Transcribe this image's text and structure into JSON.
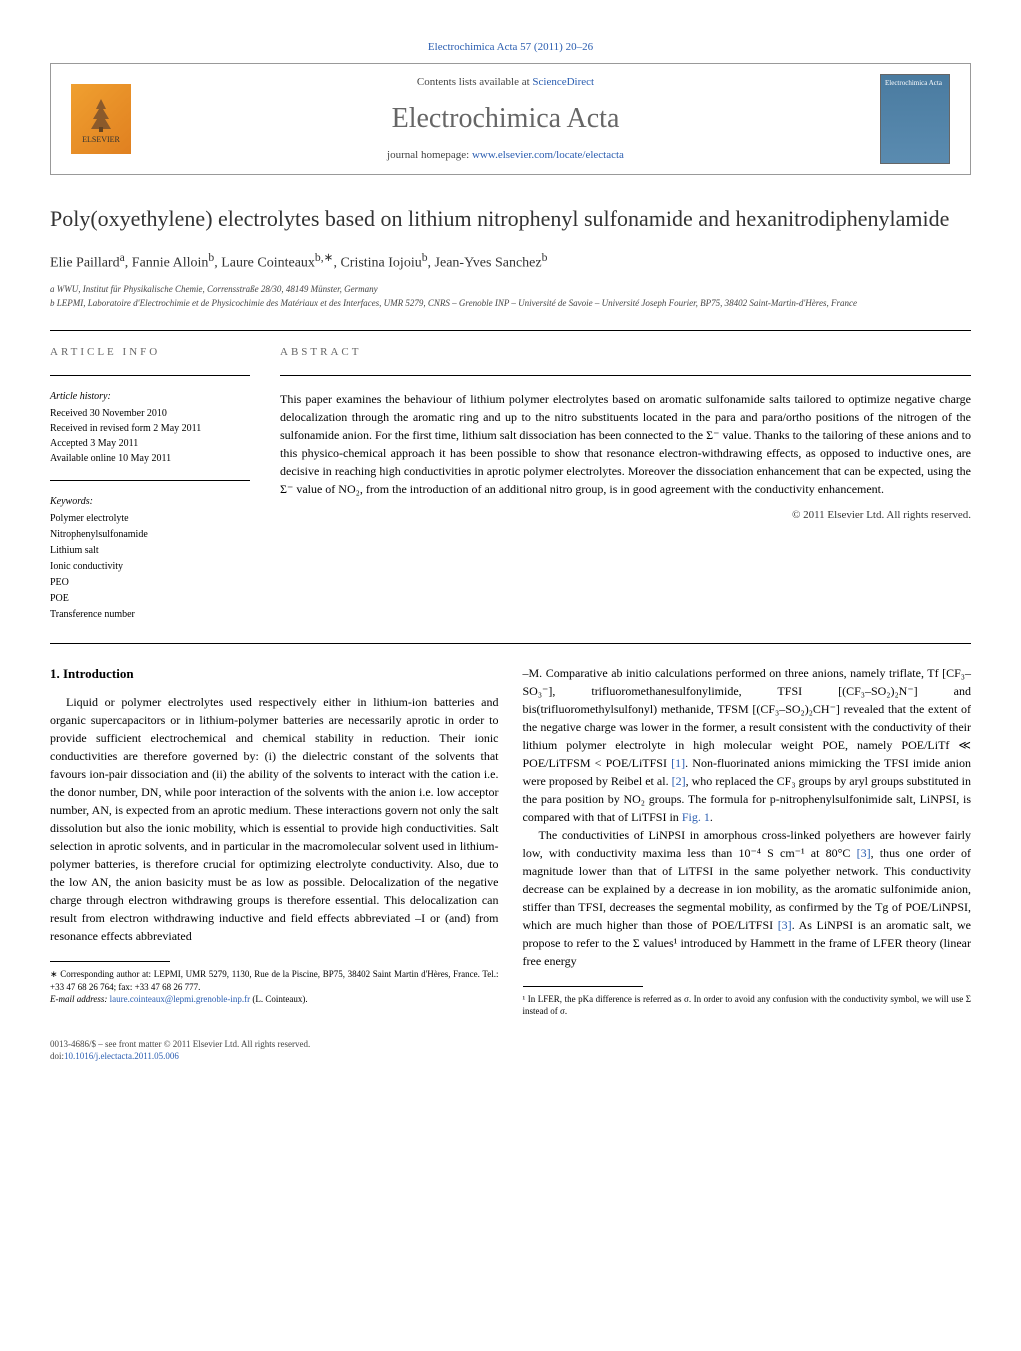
{
  "header": {
    "citation": "Electrochimica Acta 57 (2011) 20–26",
    "contents_prefix": "Contents lists available at ",
    "contents_link": "ScienceDirect",
    "journal_title": "Electrochimica Acta",
    "homepage_prefix": "journal homepage: ",
    "homepage_url": "www.elsevier.com/locate/electacta",
    "elsevier_label": "ELSEVIER",
    "cover_label": "Electrochimica Acta"
  },
  "article": {
    "title": "Poly(oxyethylene) electrolytes based on lithium nitrophenyl sulfonamide and hexanitrodiphenylamide",
    "authors_html": "Elie Paillard<sup>a</sup>, Fannie Alloin<sup>b</sup>, Laure Cointeaux<sup>b,∗</sup>, Cristina Iojoiu<sup>b</sup>, Jean-Yves Sanchez<sup>b</sup>",
    "affiliations": {
      "a": "a WWU, Institut für Physikalische Chemie, Corrensstraße 28/30, 48149 Münster, Germany",
      "b": "b LEPMI, Laboratoire d'Electrochimie et de Physicochimie des Matériaux et des Interfaces, UMR 5279, CNRS – Grenoble INP – Université de Savoie – Université Joseph Fourier, BP75, 38402 Saint-Martin-d'Hères, France"
    }
  },
  "info": {
    "label": "ARTICLE INFO",
    "history_heading": "Article history:",
    "history": "Received 30 November 2010\nReceived in revised form 2 May 2011\nAccepted 3 May 2011\nAvailable online 10 May 2011",
    "keywords_heading": "Keywords:",
    "keywords": "Polymer electrolyte\nNitrophenylsulfonamide\nLithium salt\nIonic conductivity\nPEO\nPOE\nTransference number"
  },
  "abstract": {
    "label": "ABSTRACT",
    "text": "This paper examines the behaviour of lithium polymer electrolytes based on aromatic sulfonamide salts tailored to optimize negative charge delocalization through the aromatic ring and up to the nitro substituents located in the para and para/ortho positions of the nitrogen of the sulfonamide anion. For the first time, lithium salt dissociation has been connected to the Σ⁻ value. Thanks to the tailoring of these anions and to this physico-chemical approach it has been possible to show that resonance electron-withdrawing effects, as opposed to inductive ones, are decisive in reaching high conductivities in aprotic polymer electrolytes. Moreover the dissociation enhancement that can be expected, using the Σ⁻ value of NO₂, from the introduction of an additional nitro group, is in good agreement with the conductivity enhancement.",
    "copyright": "© 2011 Elsevier Ltd. All rights reserved."
  },
  "body": {
    "heading": "1. Introduction",
    "col1_p1": "Liquid or polymer electrolytes used respectively either in lithium-ion batteries and organic supercapacitors or in lithium-polymer batteries are necessarily aprotic in order to provide sufficient electrochemical and chemical stability in reduction. Their ionic conductivities are therefore governed by: (i) the dielectric constant of the solvents that favours ion-pair dissociation and (ii) the ability of the solvents to interact with the cation i.e. the donor number, DN, while poor interaction of the solvents with the anion i.e. low acceptor number, AN, is expected from an aprotic medium. These interactions govern not only the salt dissolution but also the ionic mobility, which is essential to provide high conductivities. Salt selection in aprotic solvents, and in particular in the macromolecular solvent used in lithium-polymer batteries, is therefore crucial for optimizing electrolyte conductivity. Also, due to the low AN, the anion basicity must be as low as possible. Delocalization of the negative charge through electron withdrawing groups is therefore essential. This delocalization can result from electron withdrawing inductive and field effects abbreviated –I or (and) from resonance effects abbreviated",
    "col2_p1": "–M. Comparative ab initio calculations performed on three anions, namely triflate, Tf [CF₃–SO₃⁻], trifluoromethanesulfonylimide, TFSI [(CF₃–SO₂)₂N⁻] and bis(trifluoromethylsulfonyl) methanide, TFSM [(CF₃–SO₂)₂CH⁻] revealed that the extent of the negative charge was lower in the former, a result consistent with the conductivity of their lithium polymer electrolyte in high molecular weight POE, namely POE/LiTf ≪ POE/LiTFSM < POE/LiTFSI [1]. Non-fluorinated anions mimicking the TFSI imide anion were proposed by Reibel et al. [2], who replaced the CF₃ groups by aryl groups substituted in the para position by NO₂ groups. The formula for p-nitrophenylsulfonimide salt, LiNPSI, is compared with that of LiTFSI in Fig. 1.",
    "col2_p2": "The conductivities of LiNPSI in amorphous cross-linked polyethers are however fairly low, with conductivity maxima less than 10⁻⁴ S cm⁻¹ at 80°C [3], thus one order of magnitude lower than that of LiTFSI in the same polyether network. This conductivity decrease can be explained by a decrease in ion mobility, as the aromatic sulfonimide anion, stiffer than TFSI, decreases the segmental mobility, as confirmed by the Tg of POE/LiNPSI, which are much higher than those of POE/LiTFSI [3]. As LiNPSI is an aromatic salt, we propose to refer to the Σ values¹ introduced by Hammett in the frame of LFER theory (linear free energy"
  },
  "footnotes": {
    "corr_star": "∗",
    "corr_text": "Corresponding author at: LEPMI, UMR 5279, 1130, Rue de la Piscine, BP75, 38402 Saint Martin d'Hères, France. Tel.: +33 47 68 26 764; fax: +33 47 68 26 777.",
    "email_label": "E-mail address:",
    "email": "laure.cointeaux@lepmi.grenoble-inp.fr",
    "email_suffix": "(L. Cointeaux).",
    "note1_num": "¹",
    "note1_text": "In LFER, the pKa difference is referred as σ. In order to avoid any confusion with the conductivity symbol, we will use Σ instead of σ."
  },
  "footer": {
    "issn": "0013-4686/$ – see front matter © 2011 Elsevier Ltd. All rights reserved.",
    "doi_label": "doi:",
    "doi": "10.1016/j.electacta.2011.05.006"
  },
  "colors": {
    "link": "#2a5db0",
    "text": "#000000",
    "muted": "#666666",
    "border": "#999999"
  }
}
